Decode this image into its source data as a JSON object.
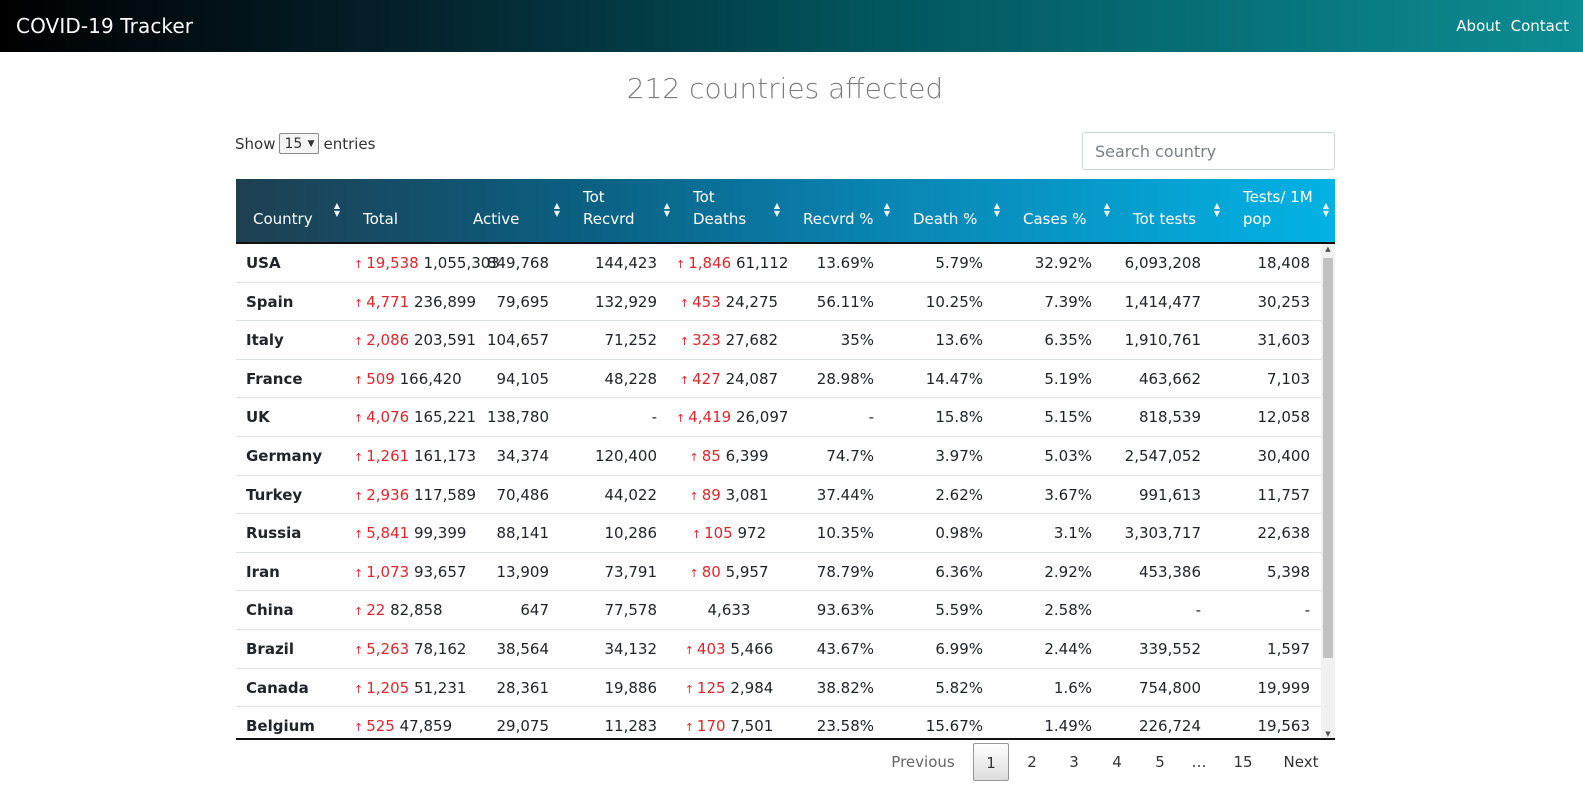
{
  "navbar": {
    "brand": "COVID-19 Tracker",
    "links": [
      "About",
      "Contact"
    ]
  },
  "headline": "212 countries affected",
  "length_control": {
    "show": "Show",
    "value": "15",
    "entries": "entries"
  },
  "search": {
    "placeholder": "Search country"
  },
  "columns": [
    {
      "line1": "",
      "line2": "Country"
    },
    {
      "line1": "",
      "line2": "Total"
    },
    {
      "line1": "",
      "line2": "Active"
    },
    {
      "line1": "Tot",
      "line2": "Recvrd"
    },
    {
      "line1": "Tot",
      "line2": "Deaths"
    },
    {
      "line1": "",
      "line2": "Recvrd %"
    },
    {
      "line1": "",
      "line2": "Death %"
    },
    {
      "line1": "",
      "line2": "Cases %"
    },
    {
      "line1": "",
      "line2": "Tot tests"
    },
    {
      "line1": "Tests/ 1M",
      "line2": "pop"
    }
  ],
  "rows": [
    {
      "country": "USA",
      "new_cases": "19,538",
      "total": "1,055,303",
      "active": "849,768",
      "recovered": "144,423",
      "new_deaths": "1,846",
      "deaths": "61,112",
      "rec_pct": "13.69%",
      "death_pct": "5.79%",
      "cases_pct": "32.92%",
      "tests": "6,093,208",
      "tests_per_m": "18,408"
    },
    {
      "country": "Spain",
      "new_cases": "4,771",
      "total": "236,899",
      "active": "79,695",
      "recovered": "132,929",
      "new_deaths": "453",
      "deaths": "24,275",
      "rec_pct": "56.11%",
      "death_pct": "10.25%",
      "cases_pct": "7.39%",
      "tests": "1,414,477",
      "tests_per_m": "30,253"
    },
    {
      "country": "Italy",
      "new_cases": "2,086",
      "total": "203,591",
      "active": "104,657",
      "recovered": "71,252",
      "new_deaths": "323",
      "deaths": "27,682",
      "rec_pct": "35%",
      "death_pct": "13.6%",
      "cases_pct": "6.35%",
      "tests": "1,910,761",
      "tests_per_m": "31,603"
    },
    {
      "country": "France",
      "new_cases": "509",
      "total": "166,420",
      "active": "94,105",
      "recovered": "48,228",
      "new_deaths": "427",
      "deaths": "24,087",
      "rec_pct": "28.98%",
      "death_pct": "14.47%",
      "cases_pct": "5.19%",
      "tests": "463,662",
      "tests_per_m": "7,103"
    },
    {
      "country": "UK",
      "new_cases": "4,076",
      "total": "165,221",
      "active": "138,780",
      "recovered": "-",
      "new_deaths": "4,419",
      "deaths": "26,097",
      "rec_pct": "-",
      "death_pct": "15.8%",
      "cases_pct": "5.15%",
      "tests": "818,539",
      "tests_per_m": "12,058"
    },
    {
      "country": "Germany",
      "new_cases": "1,261",
      "total": "161,173",
      "active": "34,374",
      "recovered": "120,400",
      "new_deaths": "85",
      "deaths": "6,399",
      "rec_pct": "74.7%",
      "death_pct": "3.97%",
      "cases_pct": "5.03%",
      "tests": "2,547,052",
      "tests_per_m": "30,400"
    },
    {
      "country": "Turkey",
      "new_cases": "2,936",
      "total": "117,589",
      "active": "70,486",
      "recovered": "44,022",
      "new_deaths": "89",
      "deaths": "3,081",
      "rec_pct": "37.44%",
      "death_pct": "2.62%",
      "cases_pct": "3.67%",
      "tests": "991,613",
      "tests_per_m": "11,757"
    },
    {
      "country": "Russia",
      "new_cases": "5,841",
      "total": "99,399",
      "active": "88,141",
      "recovered": "10,286",
      "new_deaths": "105",
      "deaths": "972",
      "rec_pct": "10.35%",
      "death_pct": "0.98%",
      "cases_pct": "3.1%",
      "tests": "3,303,717",
      "tests_per_m": "22,638"
    },
    {
      "country": "Iran",
      "new_cases": "1,073",
      "total": "93,657",
      "active": "13,909",
      "recovered": "73,791",
      "new_deaths": "80",
      "deaths": "5,957",
      "rec_pct": "78.79%",
      "death_pct": "6.36%",
      "cases_pct": "2.92%",
      "tests": "453,386",
      "tests_per_m": "5,398"
    },
    {
      "country": "China",
      "new_cases": "22",
      "total": "82,858",
      "active": "647",
      "recovered": "77,578",
      "new_deaths": "",
      "deaths": "4,633",
      "rec_pct": "93.63%",
      "death_pct": "5.59%",
      "cases_pct": "2.58%",
      "tests": "-",
      "tests_per_m": "-"
    },
    {
      "country": "Brazil",
      "new_cases": "5,263",
      "total": "78,162",
      "active": "38,564",
      "recovered": "34,132",
      "new_deaths": "403",
      "deaths": "5,466",
      "rec_pct": "43.67%",
      "death_pct": "6.99%",
      "cases_pct": "2.44%",
      "tests": "339,552",
      "tests_per_m": "1,597"
    },
    {
      "country": "Canada",
      "new_cases": "1,205",
      "total": "51,231",
      "active": "28,361",
      "recovered": "19,886",
      "new_deaths": "125",
      "deaths": "2,984",
      "rec_pct": "38.82%",
      "death_pct": "5.82%",
      "cases_pct": "1.6%",
      "tests": "754,800",
      "tests_per_m": "19,999"
    },
    {
      "country": "Belgium",
      "new_cases": "525",
      "total": "47,859",
      "active": "29,075",
      "recovered": "11,283",
      "new_deaths": "170",
      "deaths": "7,501",
      "rec_pct": "23.58%",
      "death_pct": "15.67%",
      "cases_pct": "1.49%",
      "tests": "226,724",
      "tests_per_m": "19,563"
    }
  ],
  "pagination": {
    "previous": "Previous",
    "pages": [
      "1",
      "2",
      "3",
      "4",
      "5",
      "…",
      "15"
    ],
    "current": "1",
    "next": "Next"
  },
  "icons": {
    "trend_up": "arrow-up-icon",
    "sort": "sort-icon"
  },
  "colors": {
    "increase_red": "#e0262d"
  }
}
